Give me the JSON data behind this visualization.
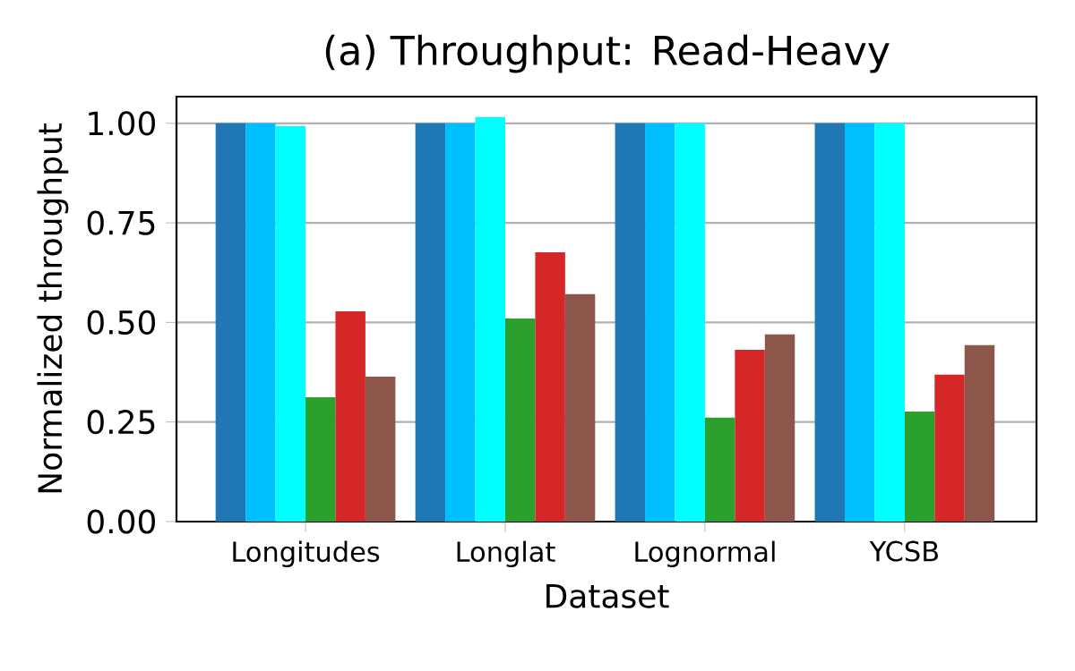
{
  "chart_data": {
    "type": "bar",
    "title": "(a) Throughput: Read-Heavy",
    "xlabel": "Dataset",
    "ylabel": "Normalized throughput",
    "categories": [
      "Longitudes",
      "Longlat",
      "Lognormal",
      "YCSB"
    ],
    "series": [
      {
        "color": "#1f77b4",
        "values": [
          1.0,
          1.0,
          1.0,
          1.0
        ]
      },
      {
        "color": "#00bfff",
        "values": [
          1.0,
          1.0,
          1.0,
          1.0
        ]
      },
      {
        "color": "#00ffff",
        "values": [
          0.993,
          1.016,
          1.0,
          1.0
        ]
      },
      {
        "color": "#2ca02c",
        "values": [
          0.312,
          0.51,
          0.261,
          0.276
        ]
      },
      {
        "color": "#d62728",
        "values": [
          0.528,
          0.676,
          0.431,
          0.369
        ]
      },
      {
        "color": "#8c564b",
        "values": [
          0.364,
          0.571,
          0.47,
          0.443
        ]
      }
    ],
    "ylim": [
      0,
      1.067
    ],
    "yticks": [
      {
        "value": 0,
        "label": "0.00"
      },
      {
        "value": 0.25,
        "label": "0.25"
      },
      {
        "value": 0.5,
        "label": "0.50"
      },
      {
        "value": 0.75,
        "label": "0.75"
      },
      {
        "value": 1.0,
        "label": "1.00"
      }
    ],
    "grid": "y"
  }
}
